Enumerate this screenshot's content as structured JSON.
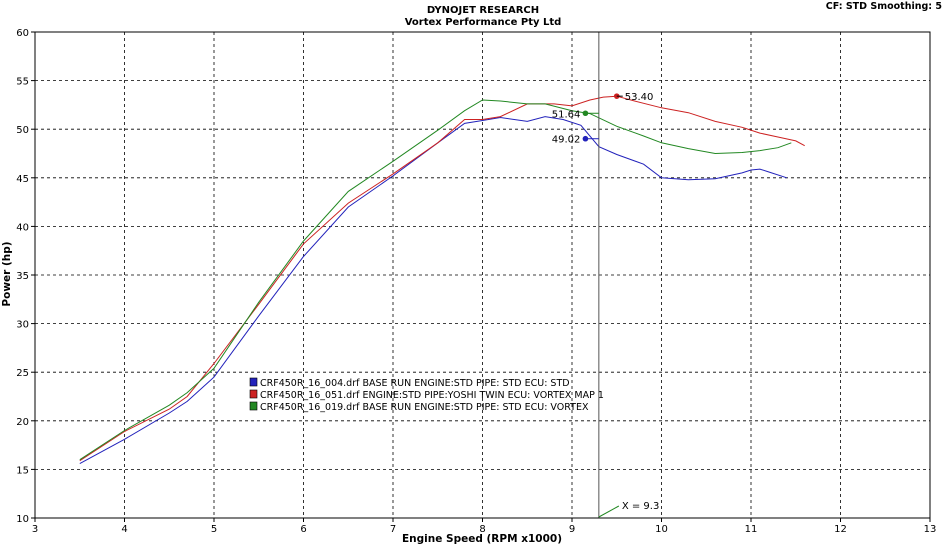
{
  "header": {
    "title": "DYNOJET RESEARCH",
    "subtitle": "Vortex Performance Pty Ltd",
    "settings": "CF: STD  Smoothing: 5"
  },
  "chart_data": {
    "type": "line",
    "xlabel": "Engine Speed (RPM x1000)",
    "ylabel": "Power (hp)",
    "xlim": [
      3,
      13
    ],
    "ylim": [
      10,
      60
    ],
    "xticks": [
      3,
      4,
      5,
      6,
      7,
      8,
      9,
      10,
      11,
      12,
      13
    ],
    "yticks": [
      10,
      15,
      20,
      25,
      30,
      35,
      40,
      45,
      50,
      55,
      60
    ],
    "grid": true,
    "legend_position": "center-left",
    "cursor": {
      "x": 9.3,
      "label": "X = 9.3"
    },
    "series": [
      {
        "name": "CRF450R_16_004.drf BASE RUN ENGINE:STD PIPE: STD ECU: STD",
        "color": "#2222bb",
        "x": [
          3.5,
          4.0,
          4.5,
          4.7,
          5.0,
          5.5,
          6.0,
          6.5,
          7.0,
          7.5,
          7.8,
          8.0,
          8.2,
          8.5,
          8.7,
          8.9,
          9.1,
          9.3,
          9.5,
          9.8,
          10.0,
          10.3,
          10.6,
          10.9,
          11.0,
          11.1,
          11.2,
          11.4
        ],
        "y": [
          15.6,
          18.1,
          20.8,
          22.0,
          24.5,
          30.8,
          36.9,
          42.0,
          45.2,
          48.6,
          50.6,
          50.9,
          51.2,
          50.8,
          51.3,
          51.0,
          50.4,
          48.2,
          47.4,
          46.4,
          45.0,
          44.8,
          44.9,
          45.5,
          45.8,
          45.9,
          45.6,
          45.0
        ]
      },
      {
        "name": "CRF450R_16_051.drf ENGINE:STD PIPE:YOSHI TWIN  ECU: VORTEX MAP 1",
        "color": "#cc2222",
        "x": [
          3.5,
          4.0,
          4.5,
          4.7,
          5.0,
          5.5,
          6.0,
          6.5,
          7.0,
          7.5,
          7.8,
          8.0,
          8.2,
          8.5,
          8.8,
          9.0,
          9.2,
          9.35,
          9.5,
          9.7,
          10.0,
          10.3,
          10.6,
          10.9,
          11.1,
          11.3,
          11.5,
          11.6
        ],
        "y": [
          15.9,
          18.9,
          21.2,
          22.5,
          25.9,
          32.0,
          38.2,
          42.4,
          45.4,
          48.6,
          51.0,
          51.0,
          51.3,
          52.6,
          52.6,
          52.4,
          53.0,
          53.3,
          53.4,
          52.9,
          52.2,
          51.7,
          50.8,
          50.2,
          49.6,
          49.2,
          48.8,
          48.3
        ]
      },
      {
        "name": "CRF450R_16_019.drf BASE RUN ENGINE:STD PIPE: STD ECU: VORTEX",
        "color": "#228822",
        "x": [
          3.5,
          4.0,
          4.5,
          4.7,
          5.0,
          5.5,
          6.0,
          6.5,
          7.0,
          7.5,
          7.8,
          8.0,
          8.2,
          8.5,
          8.7,
          9.0,
          9.2,
          9.5,
          9.8,
          10.0,
          10.3,
          10.6,
          10.9,
          11.1,
          11.3,
          11.45
        ],
        "y": [
          16.0,
          19.0,
          21.6,
          22.9,
          25.4,
          32.2,
          38.5,
          43.6,
          46.7,
          49.9,
          51.9,
          53.0,
          52.9,
          52.6,
          52.6,
          51.9,
          51.6,
          50.3,
          49.3,
          48.6,
          48.0,
          47.5,
          47.6,
          47.8,
          48.1,
          48.6
        ]
      }
    ],
    "markers": [
      {
        "series": 0,
        "x": 9.15,
        "y": 49.02,
        "label": "49.02"
      },
      {
        "series": 1,
        "x": 9.5,
        "y": 53.4,
        "label": "53.40"
      },
      {
        "series": 2,
        "x": 9.15,
        "y": 51.64,
        "label": "51.64"
      }
    ]
  }
}
